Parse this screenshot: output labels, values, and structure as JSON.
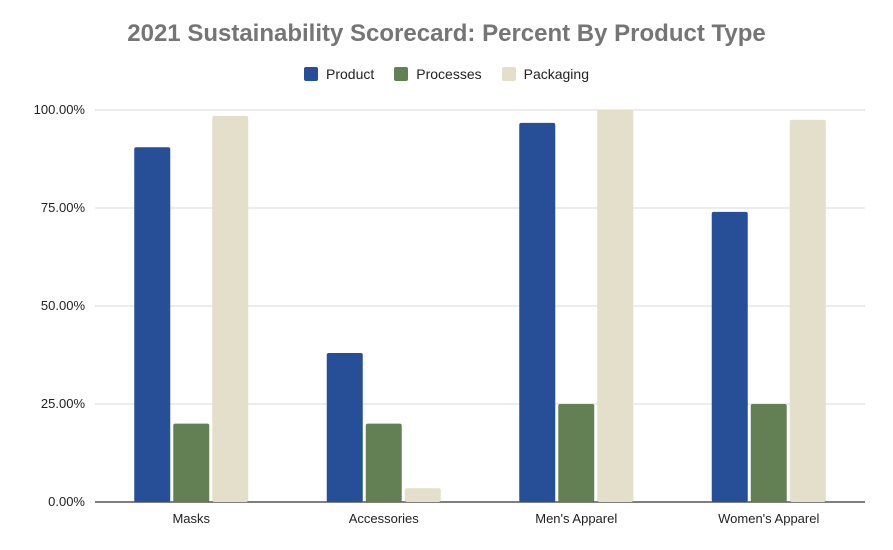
{
  "chart_data": {
    "type": "bar",
    "title": "2021 Sustainability Scorecard: Percent By Product Type",
    "categories": [
      "Masks",
      "Accessories",
      "Men's Apparel",
      "Women's Apparel"
    ],
    "series": [
      {
        "name": "Product",
        "color": "#264f97",
        "values": [
          0.905,
          0.38,
          0.967,
          0.74
        ]
      },
      {
        "name": "Processes",
        "color": "#638054",
        "values": [
          0.2,
          0.2,
          0.25,
          0.25
        ]
      },
      {
        "name": "Packaging",
        "color": "#e3dfcb",
        "values": [
          0.985,
          0.035,
          1.0,
          0.975
        ]
      }
    ],
    "ylim": [
      0,
      1
    ],
    "y_ticks": [
      "0.00%",
      "25.00%",
      "50.00%",
      "75.00%",
      "100.00%"
    ],
    "grid": true,
    "legend_position": "top"
  }
}
